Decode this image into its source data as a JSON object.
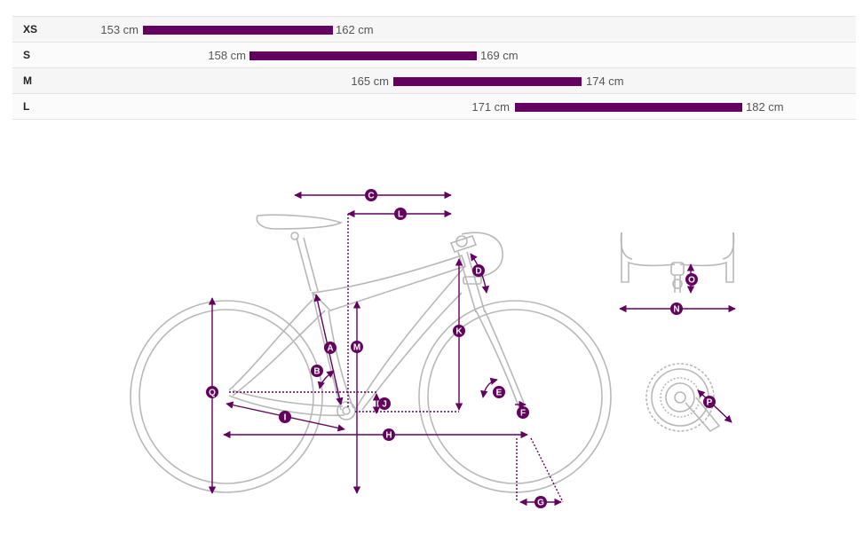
{
  "colors": {
    "accent": "#64005f",
    "frame": "#b8b8b8",
    "row_bg": "#f6f6f6"
  },
  "size_chart": {
    "rows": [
      {
        "size": "XS",
        "min": "153 cm",
        "max": "162 cm",
        "min_value": 153,
        "max_value": 162
      },
      {
        "size": "S",
        "min": "158 cm",
        "max": "169 cm",
        "min_value": 158,
        "max_value": 169
      },
      {
        "size": "M",
        "min": "165 cm",
        "max": "174 cm",
        "min_value": 165,
        "max_value": 174
      },
      {
        "size": "L",
        "min": "171 cm",
        "max": "182 cm",
        "min_value": 171,
        "max_value": 182
      }
    ]
  },
  "geometry_diagram": {
    "labels": {
      "A": "A",
      "B": "B",
      "C": "C",
      "D": "D",
      "E": "E",
      "F": "F",
      "G": "G",
      "H": "H",
      "I": "I",
      "J": "J",
      "K": "K",
      "L": "L",
      "M": "M",
      "N": "N",
      "O": "O",
      "P": "P",
      "Q": "Q"
    }
  }
}
